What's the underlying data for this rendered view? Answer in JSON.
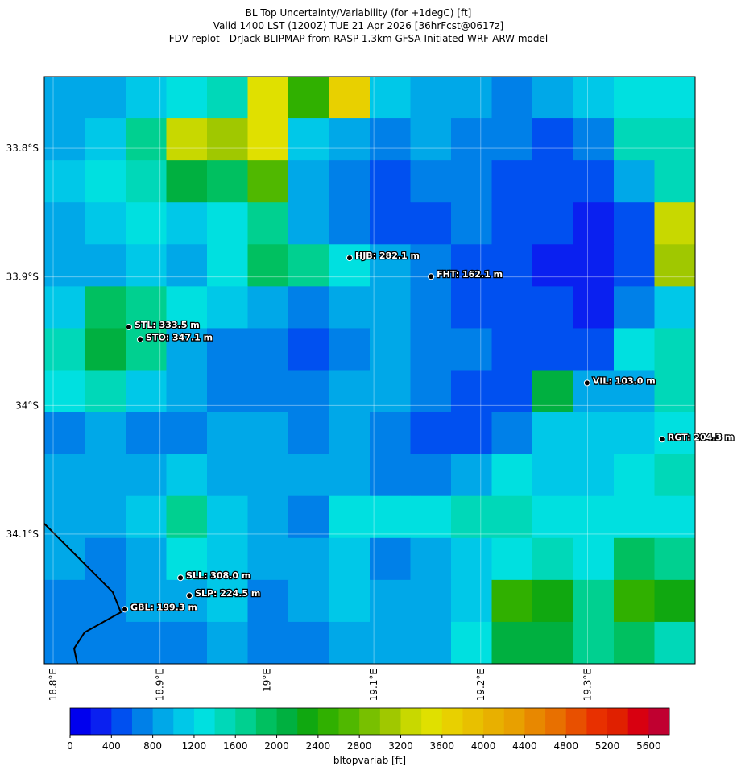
{
  "chart_data": {
    "type": "map",
    "title": [
      "BL Top Uncertainty/Variability (for +1degC) [ft]",
      "Valid 1400 LST (1200Z) TUE 21 Apr 2026 [36hrFcst@0617z]",
      "FDV replot - DrJack BLIPMAP from RASP 1.3km GFSA-Initiated WRF-ARW model"
    ],
    "xlim": [
      18.7917,
      19.4006
    ],
    "ylim": [
      -34.2009,
      -33.7442
    ],
    "xticks": [
      {
        "value": 18.8,
        "label": "18.8°E"
      },
      {
        "value": 18.9,
        "label": "18.9°E"
      },
      {
        "value": 19.0,
        "label": "19°E"
      },
      {
        "value": 19.1,
        "label": "19.1°E"
      },
      {
        "value": 19.2,
        "label": "19.2°E"
      },
      {
        "value": 19.3,
        "label": "19.3°E"
      }
    ],
    "yticks": [
      {
        "value": -33.8,
        "label": "33.8°S"
      },
      {
        "value": -33.9,
        "label": "33.9°S"
      },
      {
        "value": -34.0,
        "label": "34°S"
      },
      {
        "value": -34.1,
        "label": "34.1°S"
      }
    ],
    "grid": true,
    "values": [
      [
        800,
        900,
        1000,
        1300,
        1500,
        3400,
        2400,
        3600,
        1000,
        900,
        800,
        700,
        900,
        1000,
        1300,
        1200
      ],
      [
        900,
        1100,
        1600,
        3200,
        3000,
        3400,
        1000,
        800,
        700,
        800,
        700,
        600,
        500,
        700,
        1400,
        1500
      ],
      [
        1000,
        1200,
        1400,
        2000,
        1800,
        2600,
        900,
        700,
        500,
        600,
        600,
        500,
        400,
        500,
        900,
        1400
      ],
      [
        900,
        1000,
        1200,
        1000,
        1200,
        1600,
        900,
        600,
        500,
        500,
        600,
        400,
        400,
        300,
        400,
        3200
      ],
      [
        800,
        900,
        1000,
        900,
        1300,
        1800,
        1600,
        1200,
        800,
        700,
        500,
        400,
        300,
        300,
        400,
        3000
      ],
      [
        1100,
        1800,
        1700,
        1200,
        1000,
        800,
        600,
        800,
        900,
        700,
        500,
        400,
        400,
        300,
        600,
        1000
      ],
      [
        1400,
        2000,
        1600,
        900,
        700,
        600,
        500,
        700,
        900,
        700,
        600,
        500,
        400,
        500,
        1200,
        1500
      ],
      [
        1300,
        1500,
        1000,
        800,
        700,
        600,
        700,
        800,
        800,
        600,
        500,
        400,
        2000,
        800,
        900,
        1500
      ],
      [
        700,
        800,
        700,
        700,
        800,
        800,
        700,
        900,
        600,
        500,
        500,
        700,
        1000,
        1100,
        1000,
        1200
      ],
      [
        800,
        800,
        900,
        1000,
        900,
        900,
        800,
        900,
        600,
        600,
        900,
        1200,
        1100,
        1100,
        1300,
        1500
      ],
      [
        900,
        900,
        1000,
        1700,
        1000,
        800,
        700,
        1200,
        1200,
        1300,
        1500,
        1400,
        1300,
        1200,
        1300,
        1300
      ],
      [
        800,
        700,
        900,
        1200,
        1000,
        900,
        800,
        1100,
        700,
        800,
        1100,
        1200,
        1400,
        1300,
        1900,
        1600
      ],
      [
        700,
        700,
        800,
        900,
        1000,
        700,
        800,
        1000,
        900,
        900,
        1100,
        2500,
        2200,
        1700,
        2400,
        2200
      ],
      [
        700,
        700,
        700,
        700,
        800,
        700,
        700,
        800,
        800,
        900,
        1200,
        2000,
        2100,
        1600,
        1900,
        1400
      ]
    ],
    "stations": [
      {
        "label": "HJB: 282.1 m",
        "lon": 19.0773,
        "lat": -33.8852
      },
      {
        "label": "FHT: 162.1 m",
        "lon": 19.1535,
        "lat": -33.8997
      },
      {
        "label": "STL: 333.5 m",
        "lon": 18.8708,
        "lat": -33.939
      },
      {
        "label": "STO: 347.1 m",
        "lon": 18.8814,
        "lat": -33.9486
      },
      {
        "label": "VIL: 103.0 m",
        "lon": 19.2995,
        "lat": -33.9825
      },
      {
        "label": "RGT: 204.3 m",
        "lon": 19.3696,
        "lat": -34.0263
      },
      {
        "label": "SLL: 308.0 m",
        "lon": 18.9191,
        "lat": -34.134
      },
      {
        "label": "SLP: 224.5 m",
        "lon": 18.9274,
        "lat": -34.1478
      },
      {
        "label": "GBL: 199.3 m",
        "lon": 18.8671,
        "lat": -34.1585
      }
    ],
    "colorbar": {
      "label": "bltopvariab [ft]",
      "lim": [
        0,
        5800
      ],
      "ticks": [
        0,
        400,
        800,
        1200,
        1600,
        2000,
        2400,
        2800,
        3200,
        3600,
        4000,
        4400,
        4800,
        5200,
        5600
      ],
      "colors": [
        "#0000ee",
        "#0a20f0",
        "#0050f0",
        "#0080e8",
        "#00a8e8",
        "#00c8e8",
        "#00e0e0",
        "#00d8b8",
        "#00d090",
        "#00c060",
        "#00b040",
        "#10a810",
        "#30b000",
        "#50b800",
        "#78c000",
        "#a0c800",
        "#c8d800",
        "#e0e000",
        "#e8d000",
        "#e8c000",
        "#e8b000",
        "#e8a000",
        "#e88800",
        "#e87000",
        "#e85000",
        "#e83000",
        "#e02000",
        "#d80010",
        "#c00030"
      ]
    }
  }
}
